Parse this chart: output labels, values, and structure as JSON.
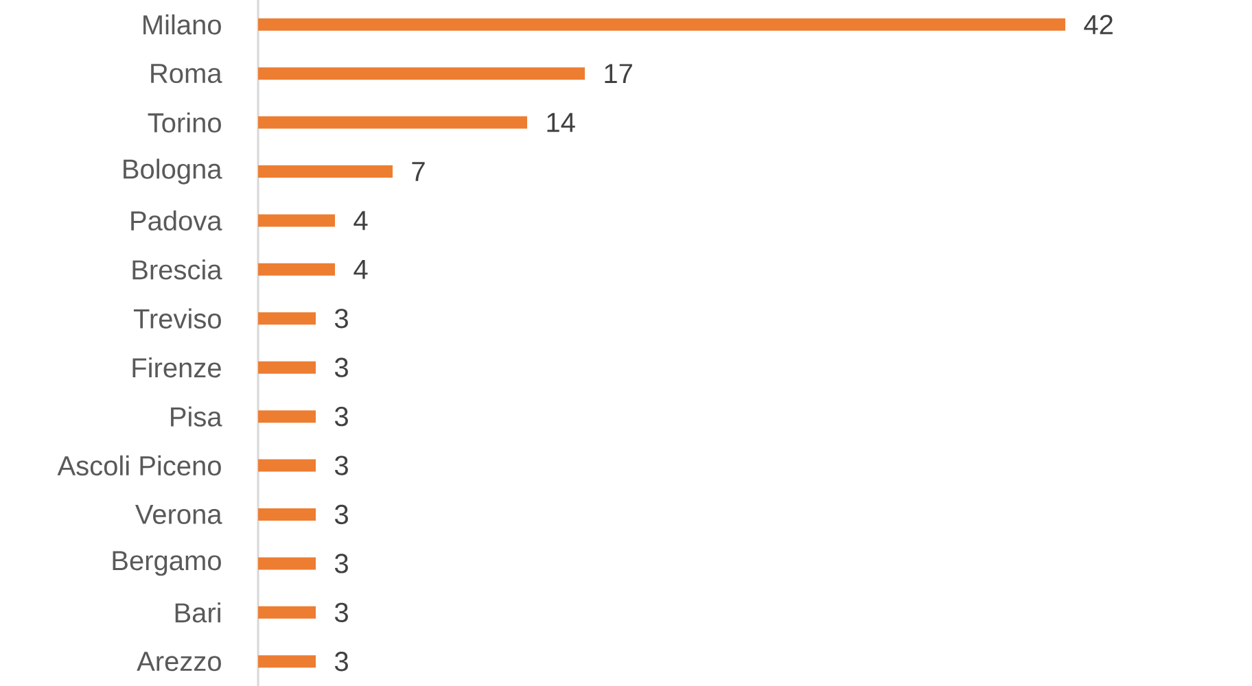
{
  "chart_data": {
    "type": "bar",
    "orientation": "horizontal",
    "categories": [
      "Milano",
      "Roma",
      "Torino",
      "Bologna",
      "Padova",
      "Brescia",
      "Treviso",
      "Firenze",
      "Pisa",
      "Ascoli Piceno",
      "Verona",
      "Bergamo",
      "Bari",
      "Arezzo"
    ],
    "values": [
      42,
      17,
      14,
      7,
      4,
      4,
      3,
      3,
      3,
      3,
      3,
      3,
      3,
      3
    ],
    "color": "#ed7d31",
    "data_labels": true,
    "tick_labels": "y"
  }
}
